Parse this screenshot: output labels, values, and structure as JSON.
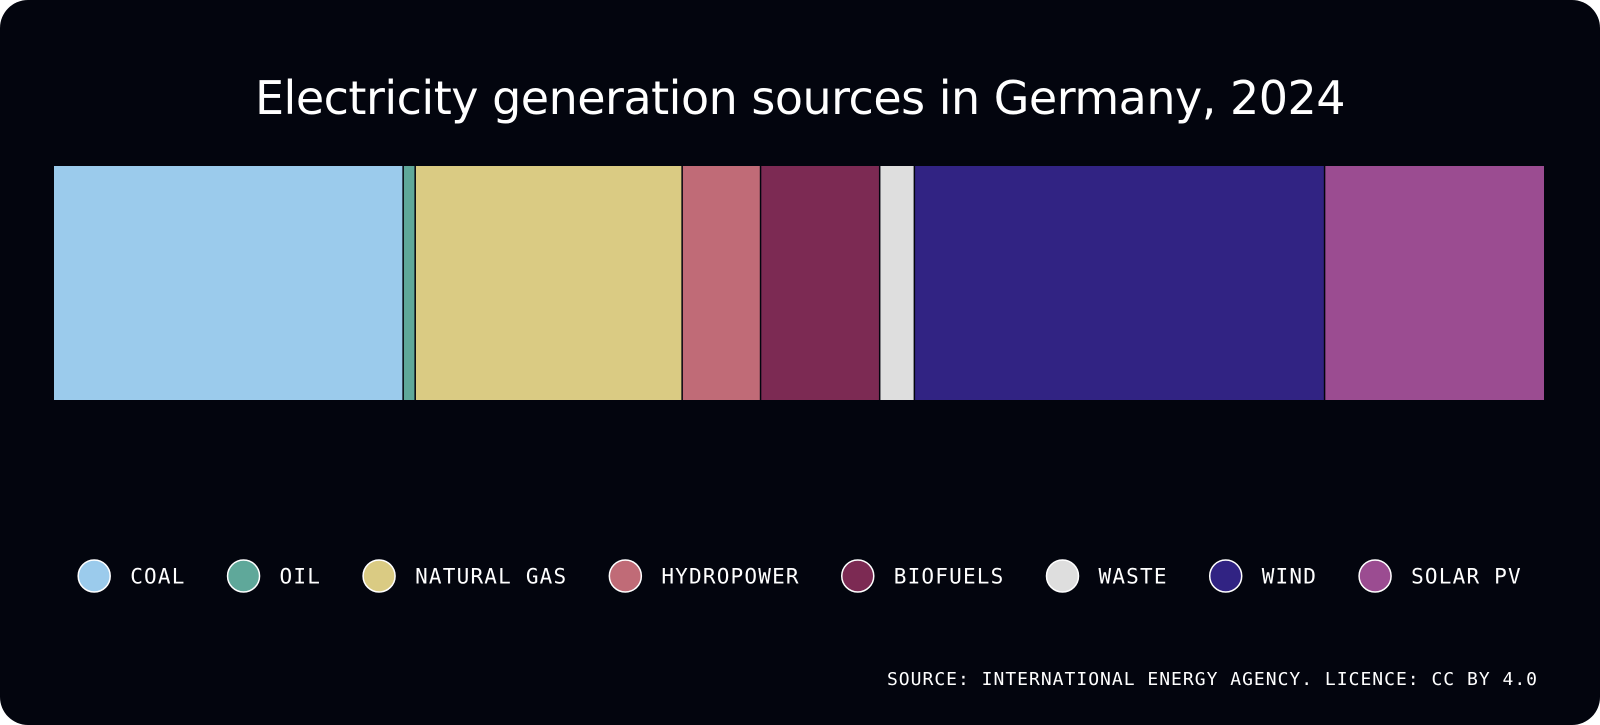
{
  "title": "Electricity generation sources in Germany, 2024",
  "source": "SOURCE: INTERNATIONAL ENERGY AGENCY. LICENCE: CC BY 4.0",
  "colors": {
    "background": "#03050e",
    "separator": "#03050e",
    "text": "#ffffff"
  },
  "chart_data": {
    "type": "bar",
    "stacked": true,
    "orientation": "horizontal",
    "unit": "share of generation (%)",
    "categories": [
      "COAL",
      "OIL",
      "NATURAL GAS",
      "HYDROPOWER",
      "BIOFUELS",
      "WASTE",
      "WIND",
      "SOLAR PV"
    ],
    "values": [
      23.2,
      0.8,
      17.7,
      5.2,
      7.9,
      2.3,
      27.2,
      14.5
    ],
    "colors": [
      "#9bcbec",
      "#5fa89a",
      "#dacb83",
      "#c06b77",
      "#7c2a53",
      "#dedede",
      "#312383",
      "#9b4c91"
    ],
    "legend_position": "bottom"
  }
}
